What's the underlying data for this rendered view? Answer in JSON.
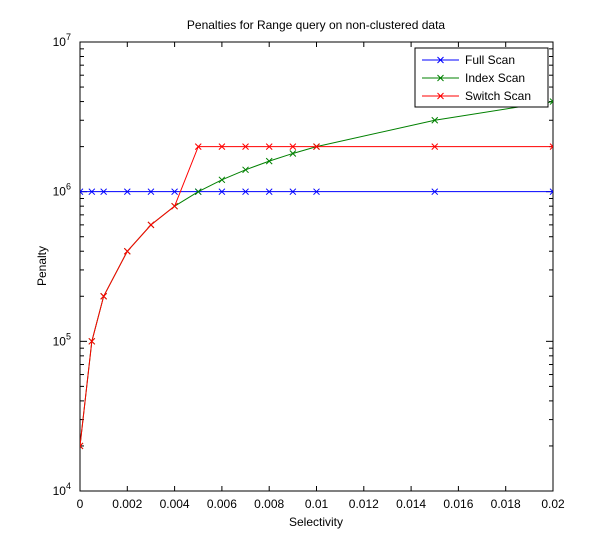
{
  "chart_data": {
    "type": "line",
    "title": "Penalties for Range query on non-clustered data",
    "xlabel": "Selectivity",
    "ylabel": "Penalty",
    "xlim": [
      0,
      0.02
    ],
    "ylim": [
      10000,
      10000000
    ],
    "yscale": "log",
    "x_ticks": [
      "0",
      "0.002",
      "0.004",
      "0.006",
      "0.008",
      "0.01",
      "0.012",
      "0.014",
      "0.016",
      "0.018",
      "0.02"
    ],
    "y_ticks": [
      {
        "base": "10",
        "exp": "4"
      },
      {
        "base": "10",
        "exp": "5"
      },
      {
        "base": "10",
        "exp": "6"
      },
      {
        "base": "10",
        "exp": "7"
      }
    ],
    "grid": false,
    "legend_position": "top-right",
    "series": [
      {
        "name": "Full Scan",
        "color": "#0000ff",
        "marker": "x",
        "x": [
          0,
          0.0005,
          0.001,
          0.002,
          0.003,
          0.004,
          0.005,
          0.006,
          0.007,
          0.008,
          0.009,
          0.01,
          0.015,
          0.02
        ],
        "values": [
          1000000,
          1000000,
          1000000,
          1000000,
          1000000,
          1000000,
          1000000,
          1000000,
          1000000,
          1000000,
          1000000,
          1000000,
          1000000,
          1000000
        ]
      },
      {
        "name": "Index Scan",
        "color": "#008000",
        "marker": "x",
        "x": [
          0,
          0.0005,
          0.001,
          0.002,
          0.003,
          0.004,
          0.005,
          0.006,
          0.007,
          0.008,
          0.009,
          0.01,
          0.015,
          0.02
        ],
        "values": [
          20000,
          100000,
          200000,
          400000,
          600000,
          800000,
          1000000,
          1200000,
          1400000,
          1600000,
          1800000,
          2000000,
          3000000,
          4000000
        ]
      },
      {
        "name": "Switch Scan",
        "color": "#ff0000",
        "marker": "x",
        "x": [
          0,
          0.0005,
          0.001,
          0.002,
          0.003,
          0.004,
          0.005,
          0.006,
          0.007,
          0.008,
          0.009,
          0.01,
          0.015,
          0.02
        ],
        "values": [
          20000,
          100000,
          200000,
          400000,
          600000,
          800000,
          2000000,
          2000000,
          2000000,
          2000000,
          2000000,
          2000000,
          2000000,
          2000000
        ]
      }
    ]
  }
}
